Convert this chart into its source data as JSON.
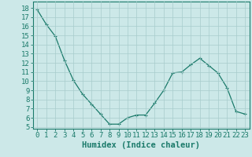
{
  "x": [
    0,
    1,
    2,
    3,
    4,
    5,
    6,
    7,
    8,
    9,
    10,
    11,
    12,
    13,
    14,
    15,
    16,
    17,
    18,
    19,
    20,
    21,
    22,
    23
  ],
  "y": [
    17.8,
    16.2,
    14.9,
    12.3,
    10.1,
    8.6,
    7.5,
    6.4,
    5.3,
    5.3,
    6.0,
    6.3,
    6.3,
    7.6,
    9.0,
    10.9,
    11.0,
    11.8,
    12.5,
    11.7,
    10.9,
    9.3,
    6.7,
    6.4
  ],
  "line_color": "#1a7a6a",
  "marker": "+",
  "marker_size": 3.5,
  "marker_linewidth": 0.8,
  "background_color": "#cce8e8",
  "grid_color": "#a8cccc",
  "xlabel": "Humidex (Indice chaleur)",
  "ylabel_ticks": [
    5,
    6,
    7,
    8,
    9,
    10,
    11,
    12,
    13,
    14,
    15,
    16,
    17,
    18
  ],
  "ylim": [
    4.8,
    18.7
  ],
  "xlim": [
    -0.5,
    23.5
  ],
  "tick_color": "#1a7a6a",
  "label_fontsize": 6.5,
  "xlabel_fontsize": 7.5,
  "axis_color": "#1a7a6a",
  "linewidth": 0.9
}
